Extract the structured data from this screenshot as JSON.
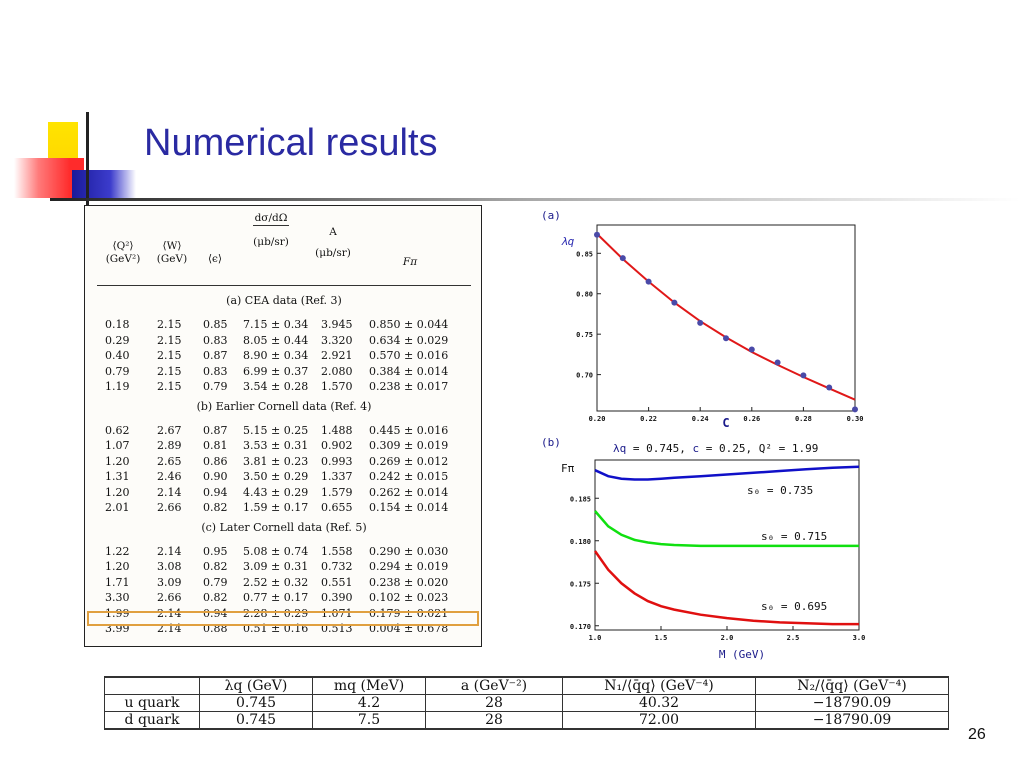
{
  "slide": {
    "title": "Numerical results",
    "page_number": "26"
  },
  "scan_table": {
    "headers": {
      "q2": "⟨Q²⟩",
      "q2_unit": "(GeV²)",
      "w": "⟨W⟩",
      "w_unit": "(GeV)",
      "eps": "⟨ϵ⟩",
      "dsig": "dσ/dΩ",
      "dsig_unit": "(μb/sr)",
      "a": "A",
      "a_unit": "(μb/sr)",
      "fpi": "Fπ"
    },
    "sections": [
      {
        "title": "(a) CEA data (Ref. 3)",
        "rows": [
          [
            "0.18",
            "2.15",
            "0.85",
            "7.15 ± 0.34",
            "3.945",
            "0.850 ± 0.044"
          ],
          [
            "0.29",
            "2.15",
            "0.83",
            "8.05 ± 0.44",
            "3.320",
            "0.634 ± 0.029"
          ],
          [
            "0.40",
            "2.15",
            "0.87",
            "8.90 ± 0.34",
            "2.921",
            "0.570 ± 0.016"
          ],
          [
            "0.79",
            "2.15",
            "0.83",
            "6.99 ± 0.37",
            "2.080",
            "0.384 ± 0.014"
          ],
          [
            "1.19",
            "2.15",
            "0.79",
            "3.54 ± 0.28",
            "1.570",
            "0.238 ± 0.017"
          ]
        ]
      },
      {
        "title": "(b) Earlier Cornell data (Ref. 4)",
        "rows": [
          [
            "0.62",
            "2.67",
            "0.87",
            "5.15 ± 0.25",
            "1.488",
            "0.445 ± 0.016"
          ],
          [
            "1.07",
            "2.89",
            "0.81",
            "3.53 ± 0.31",
            "0.902",
            "0.309 ± 0.019"
          ],
          [
            "1.20",
            "2.65",
            "0.86",
            "3.81 ± 0.23",
            "0.993",
            "0.269 ± 0.012"
          ],
          [
            "1.31",
            "2.46",
            "0.90",
            "3.50 ± 0.29",
            "1.337",
            "0.242 ± 0.015"
          ],
          [
            "1.20",
            "2.14",
            "0.94",
            "4.43 ± 0.29",
            "1.579",
            "0.262 ± 0.014"
          ],
          [
            "2.01",
            "2.66",
            "0.82",
            "1.59 ± 0.17",
            "0.655",
            "0.154 ± 0.014"
          ]
        ]
      },
      {
        "title": "(c) Later Cornell data (Ref. 5)",
        "rows": [
          [
            "1.22",
            "2.14",
            "0.95",
            "5.08 ± 0.74",
            "1.558",
            "0.290 ± 0.030"
          ],
          [
            "1.20",
            "3.08",
            "0.82",
            "3.09 ± 0.31",
            "0.732",
            "0.294 ± 0.019"
          ],
          [
            "1.71",
            "3.09",
            "0.79",
            "2.52 ± 0.32",
            "0.551",
            "0.238 ± 0.020"
          ],
          [
            "3.30",
            "2.66",
            "0.82",
            "0.77 ± 0.17",
            "0.390",
            "0.102 ± 0.023"
          ],
          [
            "1.99",
            "2.14",
            "0.94",
            "2.28 ± 0.29",
            "1.071",
            "0.179 ± 0.021"
          ],
          [
            "3.99",
            "2.14",
            "0.88",
            "0.51 ± 0.16",
            "0.513",
            "0.004 ± 0.678"
          ]
        ]
      }
    ],
    "highlight_color": "#e0a040"
  },
  "bottom_table": {
    "header": [
      "",
      "λq (GeV)",
      "mq (MeV)",
      "a (GeV⁻²)",
      "N₁/⟨q̄q⟩ (GeV⁻⁴)",
      "N₂/⟨q̄q⟩ (GeV⁻⁴)"
    ],
    "rows": [
      [
        "u quark",
        "0.745",
        "4.2",
        "28",
        "40.32",
        "−18790.09"
      ],
      [
        "d quark",
        "0.745",
        "7.5",
        "28",
        "72.00",
        "−18790.09"
      ]
    ]
  },
  "chart_data": [
    {
      "type": "scatter",
      "panel_label": "(a)",
      "xlabel": "C",
      "ylabel": "λq",
      "xlim": [
        0.2,
        0.3
      ],
      "ylim": [
        0.655,
        0.885
      ],
      "xticks": [
        "0.20",
        "0.22",
        "0.24",
        "0.26",
        "0.28",
        "0.30"
      ],
      "yticks": [
        "0.70",
        "0.75",
        "0.80",
        "0.85"
      ],
      "points": {
        "x": [
          0.2,
          0.21,
          0.22,
          0.23,
          0.24,
          0.25,
          0.26,
          0.27,
          0.28,
          0.29,
          0.3
        ],
        "y": [
          0.873,
          0.844,
          0.815,
          0.789,
          0.764,
          0.745,
          0.731,
          0.715,
          0.699,
          0.684,
          0.657
        ]
      },
      "fit": {
        "x": [
          0.2,
          0.21,
          0.22,
          0.23,
          0.24,
          0.25,
          0.26,
          0.27,
          0.28,
          0.29,
          0.3
        ],
        "y": [
          0.874,
          0.843,
          0.815,
          0.789,
          0.766,
          0.746,
          0.728,
          0.712,
          0.697,
          0.683,
          0.669
        ]
      },
      "point_color": "#4a4aa8",
      "fit_color": "#e01818"
    },
    {
      "type": "line",
      "panel_label": "(b)",
      "title_parts": {
        "lq": "λq",
        "lq_val": " = 0.745, ",
        "c": "c",
        "c_val": " = 0.25, ",
        "q2": "Q² = 1.99"
      },
      "xlabel": "M (GeV)",
      "ylabel": "Fπ",
      "xlim": [
        1.0,
        3.0
      ],
      "ylim": [
        0.1695,
        0.1895
      ],
      "xticks": [
        "1.0",
        "1.5",
        "2.0",
        "2.5",
        "3.0"
      ],
      "yticks": [
        "0.170",
        "0.175",
        "0.180",
        "0.185"
      ],
      "x": [
        1.0,
        1.1,
        1.2,
        1.3,
        1.4,
        1.5,
        1.6,
        1.8,
        2.0,
        2.2,
        2.4,
        2.6,
        2.8,
        3.0
      ],
      "series": [
        {
          "name": "s₀ = 0.735",
          "color": "#1010c8",
          "values": [
            0.1883,
            0.1876,
            0.1873,
            0.1872,
            0.1872,
            0.1873,
            0.1874,
            0.1876,
            0.1878,
            0.188,
            0.1882,
            0.1884,
            0.1886,
            0.1887
          ]
        },
        {
          "name": "s₀ = 0.715",
          "color": "#10e010",
          "values": [
            0.1835,
            0.1817,
            0.1807,
            0.1801,
            0.1798,
            0.1796,
            0.1795,
            0.1794,
            0.1794,
            0.1794,
            0.1794,
            0.1794,
            0.1794,
            0.1794
          ]
        },
        {
          "name": "s₀ = 0.695",
          "color": "#e01010",
          "values": [
            0.1788,
            0.1766,
            0.175,
            0.1738,
            0.1729,
            0.1723,
            0.1719,
            0.1713,
            0.1709,
            0.1706,
            0.1704,
            0.1703,
            0.1702,
            0.1702
          ]
        }
      ]
    }
  ]
}
